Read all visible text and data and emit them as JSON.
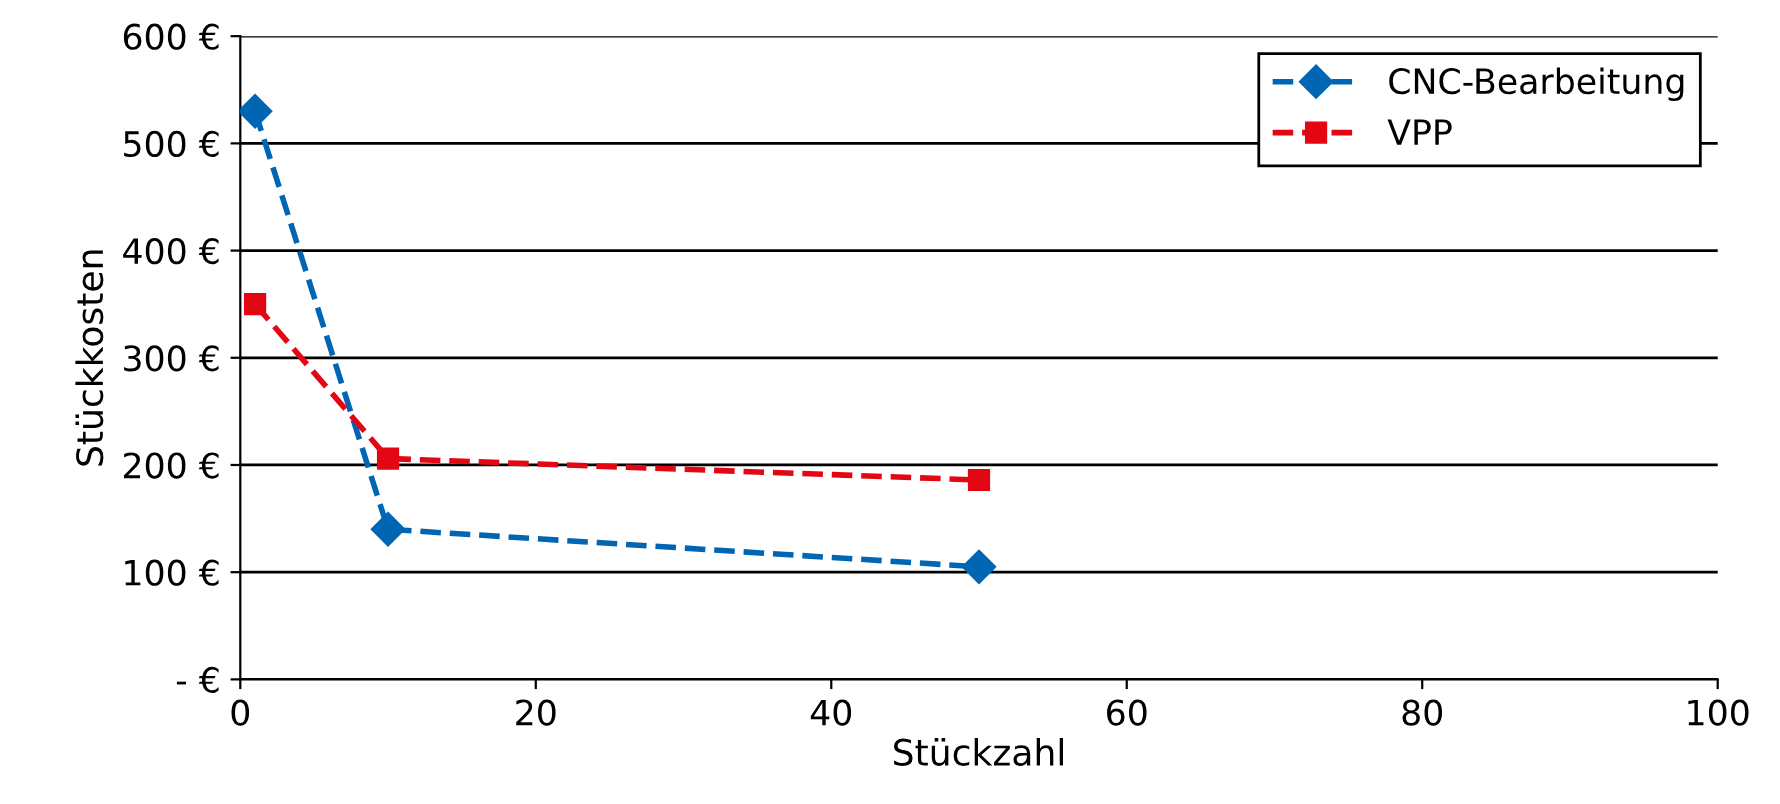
{
  "chart_data": {
    "type": "line",
    "xlabel": "Stückzahl",
    "ylabel": "Stückkosten",
    "series": [
      {
        "name": "CNC-Bearbeitung",
        "color": "#0066b3",
        "x": [
          1,
          10,
          50
        ],
        "values": [
          530,
          140,
          105
        ],
        "marker": "diamond"
      },
      {
        "name": "VPP",
        "color": "#e30613",
        "x": [
          1,
          10,
          50
        ],
        "values": [
          350,
          206,
          186
        ],
        "marker": "square"
      }
    ],
    "xlim": [
      0,
      100
    ],
    "xticks": [
      0,
      20,
      40,
      60,
      80,
      100
    ],
    "ylim": [
      0,
      600
    ],
    "yticks": [
      {
        "value": 0,
        "label": "- €"
      },
      {
        "value": 100,
        "label": "100 €"
      },
      {
        "value": 200,
        "label": "200 €"
      },
      {
        "value": 300,
        "label": "300 €"
      },
      {
        "value": 400,
        "label": "400 €"
      },
      {
        "value": 500,
        "label": "500 €"
      },
      {
        "value": 600,
        "label": "600 €"
      }
    ],
    "grid": "y",
    "legend": "top right",
    "line_style": "dashed"
  }
}
